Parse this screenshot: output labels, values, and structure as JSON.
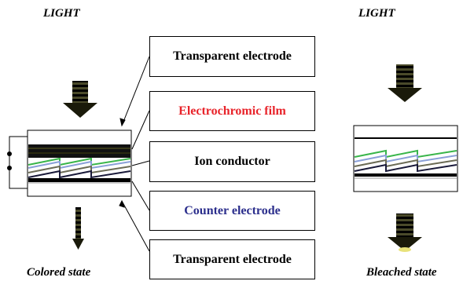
{
  "left_panel": {
    "light_label": "LIGHT",
    "state_label": "Colored state"
  },
  "right_panel": {
    "light_label": "LIGHT",
    "state_label": "Bleached state"
  },
  "layers": [
    {
      "label": "Transparent electrode",
      "color": "#000000"
    },
    {
      "label": "Electrochromic film",
      "color": "#e8232a"
    },
    {
      "label": "Ion conductor",
      "color": "#000000"
    },
    {
      "label": "Counter electrode",
      "color": "#2b2e8c"
    },
    {
      "label": "Transparent electrode",
      "color": "#000000"
    }
  ]
}
